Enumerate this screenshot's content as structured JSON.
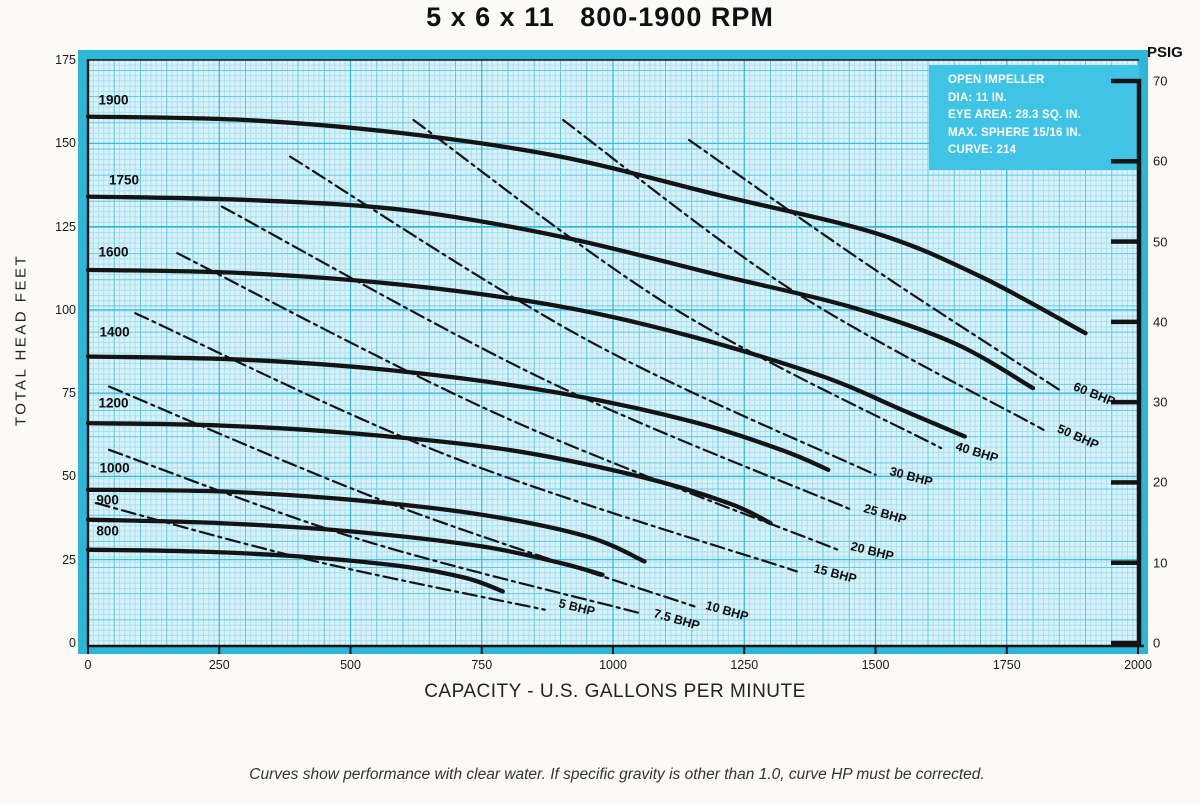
{
  "title": "5 x 6 x 11   800-1900 RPM",
  "caption": "Curves show performance with clear water. If specific gravity is other than 1.0, curve HP must be corrected.",
  "info_box": {
    "lines": [
      "OPEN IMPELLER",
      "DIA: 11 IN.",
      "EYE AREA: 28.3 SQ. IN.",
      "MAX. SPHERE 15/16 IN.",
      "CURVE: 214"
    ]
  },
  "axes": {
    "x_title": "CAPACITY - U.S. GALLONS PER MINUTE",
    "y_left_title": "TOTAL HEAD FEET",
    "y_right_title": "PSIG",
    "x_ticks": [
      0,
      250,
      500,
      750,
      1000,
      1250,
      1500,
      1750,
      2000
    ],
    "y_left_ticks": [
      175,
      150,
      125,
      100,
      75,
      50,
      25,
      0
    ],
    "y_right_ticks": [
      70,
      60,
      50,
      40,
      30,
      20,
      10,
      0
    ],
    "x_range": [
      0,
      2000
    ],
    "y_range": [
      0,
      175
    ]
  },
  "chart_data": {
    "type": "line",
    "title": "5 x 6 x 11   800-1900 RPM",
    "xlabel": "CAPACITY - U.S. GALLONS PER MINUTE",
    "ylabel": "TOTAL HEAD FEET",
    "xlim": [
      0,
      2000
    ],
    "ylim": [
      0,
      175
    ],
    "grid": true,
    "x_unit": "US GPM",
    "y_unit": "feet",
    "series": [
      {
        "name": "1900",
        "group": "rpm",
        "label_at": [
          20,
          163
        ],
        "points": [
          [
            0,
            158
          ],
          [
            300,
            157
          ],
          [
            600,
            153
          ],
          [
            900,
            146
          ],
          [
            1200,
            134.5
          ],
          [
            1500,
            123
          ],
          [
            1700,
            110
          ],
          [
            1900,
            93
          ]
        ]
      },
      {
        "name": "1750",
        "group": "rpm",
        "label_at": [
          40,
          139
        ],
        "points": [
          [
            0,
            134
          ],
          [
            300,
            133
          ],
          [
            600,
            130
          ],
          [
            900,
            122
          ],
          [
            1200,
            110.5
          ],
          [
            1450,
            101
          ],
          [
            1650,
            90
          ],
          [
            1800,
            76.5
          ]
        ]
      },
      {
        "name": "1600",
        "group": "rpm",
        "label_at": [
          20,
          117.5
        ],
        "points": [
          [
            0,
            112
          ],
          [
            300,
            111
          ],
          [
            600,
            107.5
          ],
          [
            900,
            101
          ],
          [
            1150,
            92
          ],
          [
            1400,
            80
          ],
          [
            1550,
            70
          ],
          [
            1670,
            62
          ]
        ]
      },
      {
        "name": "1400",
        "group": "rpm",
        "label_at": [
          22,
          93.5
        ],
        "points": [
          [
            0,
            86
          ],
          [
            300,
            85
          ],
          [
            600,
            81.5
          ],
          [
            900,
            75
          ],
          [
            1150,
            66.5
          ],
          [
            1320,
            58
          ],
          [
            1410,
            52
          ]
        ]
      },
      {
        "name": "1200",
        "group": "rpm",
        "label_at": [
          20,
          72
        ],
        "points": [
          [
            0,
            66
          ],
          [
            250,
            65.3
          ],
          [
            500,
            63
          ],
          [
            800,
            58
          ],
          [
            1050,
            50
          ],
          [
            1220,
            42
          ],
          [
            1300,
            36
          ]
        ]
      },
      {
        "name": "1000",
        "group": "rpm",
        "label_at": [
          22,
          52.5
        ],
        "points": [
          [
            0,
            46
          ],
          [
            250,
            45.5
          ],
          [
            500,
            43
          ],
          [
            750,
            38.5
          ],
          [
            950,
            32
          ],
          [
            1060,
            24.5
          ]
        ]
      },
      {
        "name": "900",
        "group": "rpm",
        "label_at": [
          16,
          43
        ],
        "points": [
          [
            0,
            37
          ],
          [
            250,
            36
          ],
          [
            500,
            33.5
          ],
          [
            750,
            29
          ],
          [
            900,
            24
          ],
          [
            980,
            20.5
          ]
        ]
      },
      {
        "name": "800",
        "group": "rpm",
        "label_at": [
          16,
          33.6
        ],
        "points": [
          [
            0,
            28
          ],
          [
            200,
            27.5
          ],
          [
            400,
            26
          ],
          [
            600,
            23
          ],
          [
            720,
            19.5
          ],
          [
            790,
            15.5
          ]
        ]
      },
      {
        "name": "5 BHP",
        "group": "bhp",
        "label_at": [
          886,
          12
        ],
        "label_angle": 14,
        "points": [
          [
            15,
            42
          ],
          [
            420,
            25
          ],
          [
            870,
            10
          ]
        ]
      },
      {
        "name": "7.5 BHP",
        "group": "bhp",
        "label_at": [
          1067,
          9
        ],
        "label_angle": 16,
        "points": [
          [
            40,
            58
          ],
          [
            520,
            31
          ],
          [
            1050,
            9
          ]
        ]
      },
      {
        "name": "10 BHP",
        "group": "bhp",
        "label_at": [
          1166,
          11.5
        ],
        "label_angle": 16,
        "points": [
          [
            40,
            77
          ],
          [
            590,
            41
          ],
          [
            1155,
            11
          ]
        ]
      },
      {
        "name": "15 BHP",
        "group": "bhp",
        "label_at": [
          1371,
          22.5
        ],
        "label_angle": 15,
        "points": [
          [
            90,
            99
          ],
          [
            690,
            56
          ],
          [
            1350,
            21.5
          ]
        ]
      },
      {
        "name": "20 BHP",
        "group": "bhp",
        "label_at": [
          1442,
          29
        ],
        "label_angle": 14,
        "points": [
          [
            170,
            117
          ],
          [
            790,
            68
          ],
          [
            1428,
            28
          ]
        ]
      },
      {
        "name": "25 BHP",
        "group": "bhp",
        "label_at": [
          1467,
          40.5
        ],
        "label_angle": 16,
        "points": [
          [
            255,
            131
          ],
          [
            870,
            79
          ],
          [
            1454,
            40
          ]
        ]
      },
      {
        "name": "30 BHP",
        "group": "bhp",
        "label_at": [
          1516,
          51.5
        ],
        "label_angle": 15,
        "points": [
          [
            385,
            146
          ],
          [
            950,
            91
          ],
          [
            1500,
            50.5
          ]
        ]
      },
      {
        "name": "40 BHP",
        "group": "bhp",
        "label_at": [
          1642,
          59
        ],
        "label_angle": 17,
        "points": [
          [
            620,
            157
          ],
          [
            1110,
            101
          ],
          [
            1625,
            58.5
          ]
        ]
      },
      {
        "name": "50 BHP",
        "group": "bhp",
        "label_at": [
          1836,
          64.5
        ],
        "label_angle": 24,
        "points": [
          [
            905,
            157
          ],
          [
            1340,
            106
          ],
          [
            1820,
            64
          ]
        ]
      },
      {
        "name": "60 BHP",
        "group": "bhp",
        "label_at": [
          1867,
          77
        ],
        "label_angle": 22,
        "points": [
          [
            1145,
            151
          ],
          [
            1490,
            113
          ],
          [
            1850,
            76
          ]
        ]
      }
    ]
  },
  "colors": {
    "page_bg": "#fbfaf7",
    "frame": "#2cb6d8",
    "plot_bg": "#d9f1f8",
    "grid_minor": "#a9e1ef",
    "grid_medium": "#5fcbe4",
    "grid_major": "#2db8da",
    "ink": "#141414",
    "info_box_bg": "#3fc4e6",
    "info_text": "#ffffff"
  }
}
